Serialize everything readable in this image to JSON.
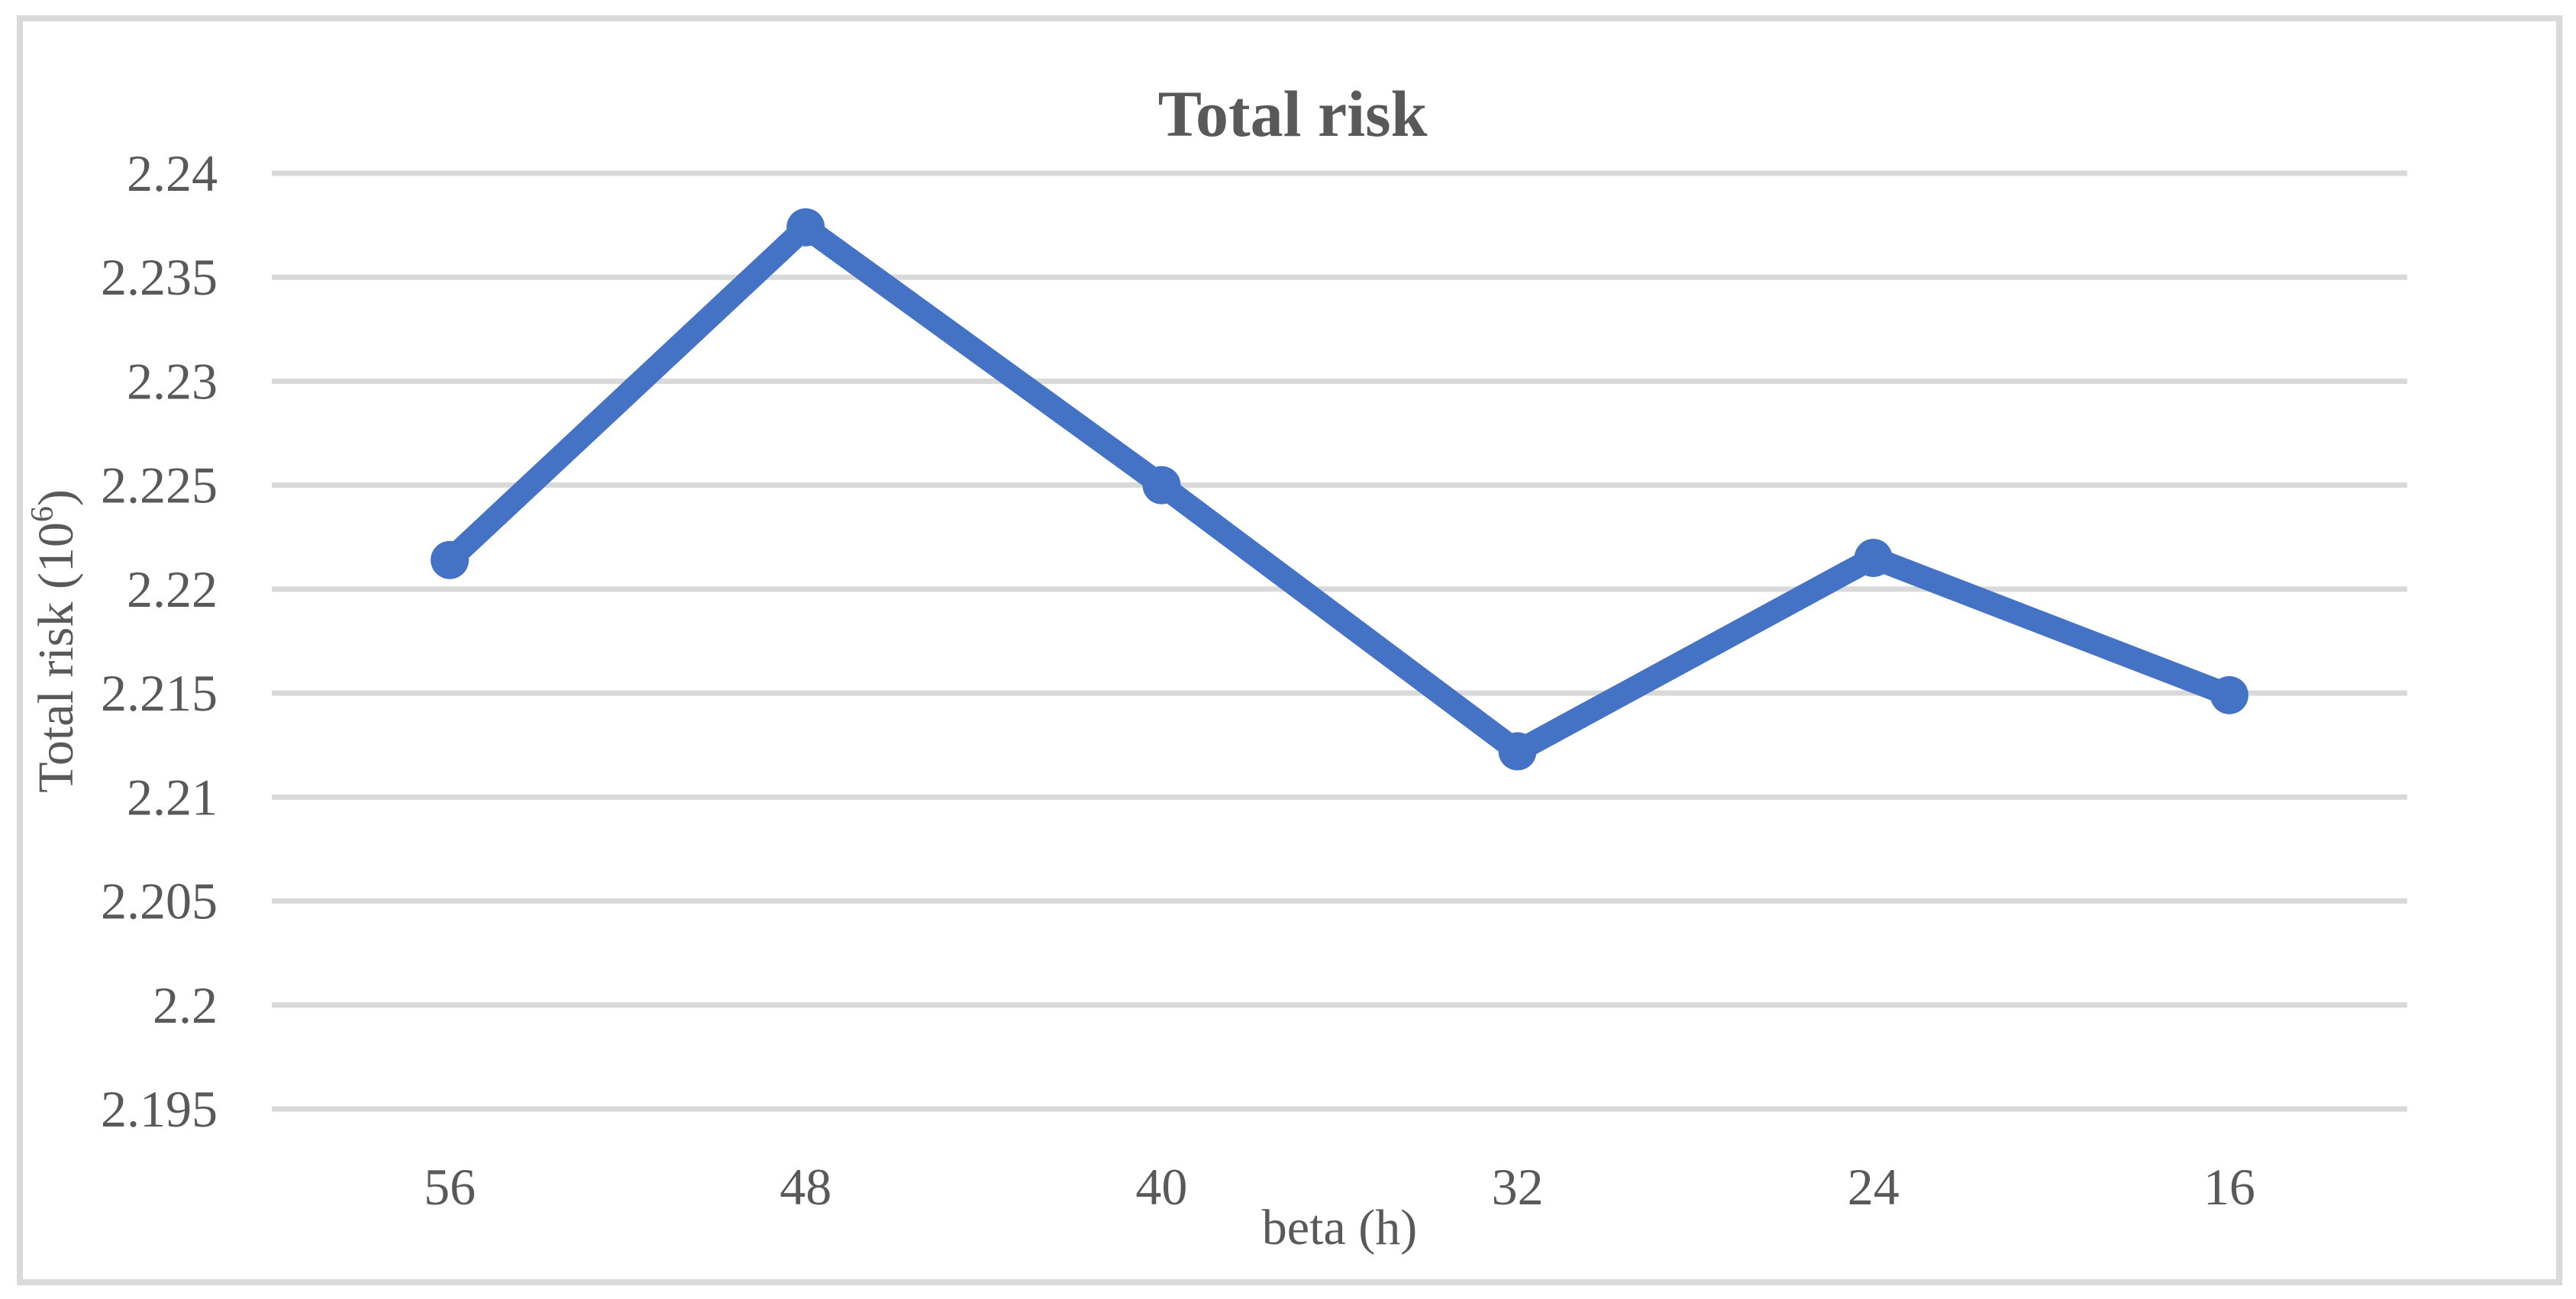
{
  "chart_data": {
    "type": "line",
    "title": "Total risk",
    "xlabel": "beta (h)",
    "ylabel": "Total risk (10⁶)",
    "ylabel_parts": {
      "prefix": "Total risk (10",
      "superscript": "6",
      "suffix": ")"
    },
    "categories": [
      "56",
      "48",
      "40",
      "32",
      "24",
      "16"
    ],
    "series": [
      {
        "name": "Total risk",
        "values": [
          2.2214,
          2.2374,
          2.225,
          2.2122,
          2.2215,
          2.2149
        ]
      }
    ],
    "ylim": [
      2.195,
      2.24
    ],
    "ytick_step": 0.005,
    "ytick_labels": [
      "2.24",
      "2.235",
      "2.23",
      "2.225",
      "2.22",
      "2.215",
      "2.21",
      "2.205",
      "2.2",
      "2.195"
    ],
    "grid": "horizontal",
    "legend": "none",
    "colors": {
      "series": "#4472C4",
      "gridline": "#D9D9D9",
      "border": "#D9D9D9",
      "text": "#595959",
      "background": "#FFFFFF"
    }
  }
}
